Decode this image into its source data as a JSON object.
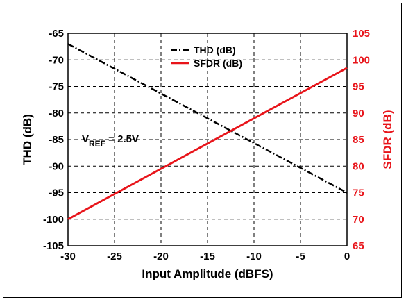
{
  "chart_data": {
    "type": "line",
    "xlabel": "Input Amplitude (dBFS)",
    "ylabel_left": "THD (dB)",
    "ylabel_right": "SFDR (dB)",
    "xlim": [
      -30,
      0
    ],
    "ylim_left": [
      -105,
      -65
    ],
    "ylim_right": [
      65,
      105
    ],
    "x_ticks": [
      "-30",
      "-25",
      "-20",
      "-15",
      "-10",
      "-5",
      "0"
    ],
    "y_left_ticks": [
      "-65",
      "-70",
      "-75",
      "-80",
      "-85",
      "-90",
      "-95",
      "-100",
      "-105"
    ],
    "y_right_ticks": [
      "105",
      "100",
      "95",
      "90",
      "85",
      "80",
      "75",
      "70",
      "65"
    ],
    "grid": true,
    "legend_position": "top-center",
    "series": [
      {
        "name": "THD (dB)",
        "axis": "left",
        "color": "#000000",
        "style": "dash-dot",
        "x": [
          -30,
          0
        ],
        "y": [
          -67,
          -95
        ]
      },
      {
        "name": "SFDR (dB)",
        "axis": "right",
        "color": "#e8141a",
        "style": "solid",
        "x": [
          -30,
          0
        ],
        "y": [
          70,
          98.5
        ]
      }
    ],
    "annotation": {
      "main": "V",
      "sub": "REF",
      "rest": " = 2.5V"
    }
  }
}
